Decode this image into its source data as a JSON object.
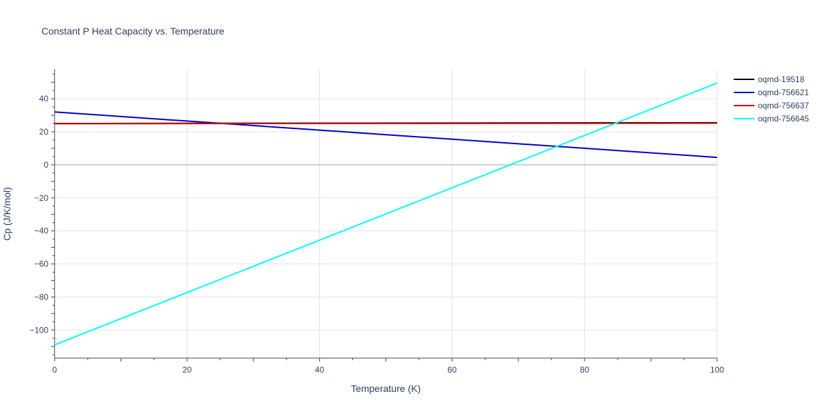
{
  "chart_data": {
    "type": "line",
    "title": "Constant P Heat Capacity vs. Temperature",
    "xlabel": "Temperature (K)",
    "ylabel": "Cp (J/K/mol)",
    "xlim": [
      0,
      100
    ],
    "ylim": [
      -117,
      58
    ],
    "x_ticks": [
      0,
      20,
      40,
      60,
      80,
      100
    ],
    "x_tick_labels": [
      "0",
      "20",
      "40",
      "60",
      "80",
      "100"
    ],
    "y_ticks": [
      -100,
      -80,
      -60,
      -40,
      -20,
      0,
      20,
      40
    ],
    "y_tick_labels": [
      "−100",
      "−80",
      "−60",
      "−40",
      "−20",
      "0",
      "20",
      "40"
    ],
    "grid": true,
    "legend_position": "top-right",
    "series": [
      {
        "name": "oqmd-19518",
        "color": "#000000",
        "x": [
          0,
          100
        ],
        "y": [
          25.0,
          25.5
        ]
      },
      {
        "name": "oqmd-756621",
        "color": "#0000cc",
        "x": [
          0,
          100
        ],
        "y": [
          32.0,
          4.5
        ]
      },
      {
        "name": "oqmd-756637",
        "color": "#cc0000",
        "x": [
          0,
          100
        ],
        "y": [
          24.9,
          25.2
        ]
      },
      {
        "name": "oqmd-756645",
        "color": "#00ffff",
        "x": [
          0,
          100
        ],
        "y": [
          -109.0,
          49.5
        ]
      }
    ]
  }
}
